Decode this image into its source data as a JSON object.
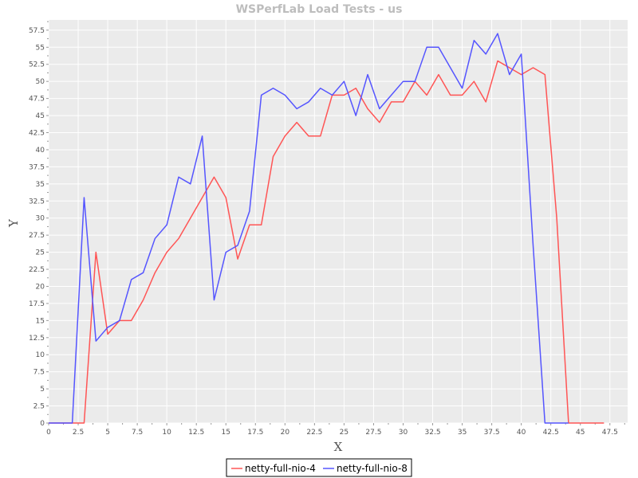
{
  "chart_data": {
    "type": "line",
    "title": "WSPerfLab Load Tests - us",
    "xlabel": "X",
    "ylabel": "Y",
    "xlim": [
      0,
      49
    ],
    "ylim": [
      0,
      59
    ],
    "x_ticks": [
      "0",
      "2.5",
      "5",
      "7.5",
      "10",
      "12.5",
      "15",
      "17.5",
      "20",
      "22.5",
      "25",
      "27.5",
      "30",
      "32.5",
      "35",
      "37.5",
      "40",
      "42.5",
      "45",
      "47.5"
    ],
    "y_ticks": [
      "0",
      "2.5",
      "5",
      "7.5",
      "10",
      "12.5",
      "15",
      "17.5",
      "20",
      "22.5",
      "25",
      "27.5",
      "30",
      "32.5",
      "35",
      "37.5",
      "40",
      "42.5",
      "45",
      "47.5",
      "50",
      "52.5",
      "55",
      "57.5"
    ],
    "grid": true,
    "legend_position": "bottom-center",
    "series": [
      {
        "name": "netty-full-nio-4",
        "color": "#ff5555",
        "points": [
          [
            0,
            0
          ],
          [
            1,
            0
          ],
          [
            2,
            0
          ],
          [
            3,
            0
          ],
          [
            4,
            25
          ],
          [
            5,
            13
          ],
          [
            6,
            15
          ],
          [
            7,
            15
          ],
          [
            8,
            18
          ],
          [
            9,
            22
          ],
          [
            10,
            25
          ],
          [
            11,
            27
          ],
          [
            12,
            30
          ],
          [
            13,
            33
          ],
          [
            14,
            36
          ],
          [
            15,
            33
          ],
          [
            16,
            24
          ],
          [
            17,
            29
          ],
          [
            18,
            29
          ],
          [
            19,
            39
          ],
          [
            20,
            42
          ],
          [
            21,
            44
          ],
          [
            22,
            42
          ],
          [
            23,
            42
          ],
          [
            24,
            48
          ],
          [
            25,
            48
          ],
          [
            26,
            49
          ],
          [
            27,
            46
          ],
          [
            28,
            44
          ],
          [
            29,
            47
          ],
          [
            30,
            47
          ],
          [
            31,
            50
          ],
          [
            32,
            48
          ],
          [
            33,
            51
          ],
          [
            34,
            48
          ],
          [
            35,
            48
          ],
          [
            36,
            50
          ],
          [
            37,
            47
          ],
          [
            38,
            53
          ],
          [
            39,
            52
          ],
          [
            40,
            51
          ],
          [
            41,
            52
          ],
          [
            42,
            51
          ],
          [
            43,
            30
          ],
          [
            44,
            0
          ],
          [
            45,
            0
          ],
          [
            46,
            0
          ],
          [
            47,
            0
          ]
        ]
      },
      {
        "name": "netty-full-nio-8",
        "color": "#5555ff",
        "points": [
          [
            0,
            0
          ],
          [
            1,
            0
          ],
          [
            2,
            0
          ],
          [
            3,
            33
          ],
          [
            4,
            12
          ],
          [
            5,
            14
          ],
          [
            6,
            15
          ],
          [
            7,
            21
          ],
          [
            8,
            22
          ],
          [
            9,
            27
          ],
          [
            10,
            29
          ],
          [
            11,
            36
          ],
          [
            12,
            35
          ],
          [
            13,
            42
          ],
          [
            14,
            18
          ],
          [
            15,
            25
          ],
          [
            16,
            26
          ],
          [
            17,
            31
          ],
          [
            18,
            48
          ],
          [
            19,
            49
          ],
          [
            20,
            48
          ],
          [
            21,
            46
          ],
          [
            22,
            47
          ],
          [
            23,
            49
          ],
          [
            24,
            48
          ],
          [
            25,
            50
          ],
          [
            26,
            45
          ],
          [
            27,
            51
          ],
          [
            28,
            46
          ],
          [
            29,
            48
          ],
          [
            30,
            50
          ],
          [
            31,
            50
          ],
          [
            32,
            55
          ],
          [
            33,
            55
          ],
          [
            34,
            52
          ],
          [
            35,
            49
          ],
          [
            36,
            56
          ],
          [
            37,
            54
          ],
          [
            38,
            57
          ],
          [
            39,
            51
          ],
          [
            40,
            54
          ],
          [
            41,
            26
          ],
          [
            42,
            0
          ],
          [
            43,
            0
          ],
          [
            44,
            0
          ]
        ]
      }
    ]
  }
}
